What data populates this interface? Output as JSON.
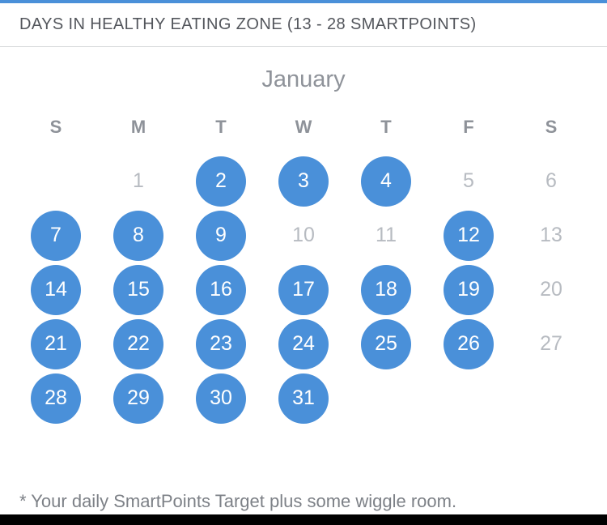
{
  "header": {
    "title": "DAYS IN HEALTHY EATING ZONE  (13 - 28 SMARTPOINTS)"
  },
  "calendar": {
    "month": "January",
    "weekday_headers": [
      "S",
      "M",
      "T",
      "W",
      "T",
      "F",
      "S"
    ],
    "start_offset": 1,
    "days": [
      {
        "day": 1,
        "in_zone": false
      },
      {
        "day": 2,
        "in_zone": true
      },
      {
        "day": 3,
        "in_zone": true
      },
      {
        "day": 4,
        "in_zone": true
      },
      {
        "day": 5,
        "in_zone": false
      },
      {
        "day": 6,
        "in_zone": false
      },
      {
        "day": 7,
        "in_zone": true
      },
      {
        "day": 8,
        "in_zone": true
      },
      {
        "day": 9,
        "in_zone": true
      },
      {
        "day": 10,
        "in_zone": false
      },
      {
        "day": 11,
        "in_zone": false
      },
      {
        "day": 12,
        "in_zone": true
      },
      {
        "day": 13,
        "in_zone": false
      },
      {
        "day": 14,
        "in_zone": true
      },
      {
        "day": 15,
        "in_zone": true
      },
      {
        "day": 16,
        "in_zone": true
      },
      {
        "day": 17,
        "in_zone": true
      },
      {
        "day": 18,
        "in_zone": true
      },
      {
        "day": 19,
        "in_zone": true
      },
      {
        "day": 20,
        "in_zone": false
      },
      {
        "day": 21,
        "in_zone": true
      },
      {
        "day": 22,
        "in_zone": true
      },
      {
        "day": 23,
        "in_zone": true
      },
      {
        "day": 24,
        "in_zone": true
      },
      {
        "day": 25,
        "in_zone": true
      },
      {
        "day": 26,
        "in_zone": true
      },
      {
        "day": 27,
        "in_zone": false
      },
      {
        "day": 28,
        "in_zone": true
      },
      {
        "day": 29,
        "in_zone": true
      },
      {
        "day": 30,
        "in_zone": true
      },
      {
        "day": 31,
        "in_zone": true
      }
    ]
  },
  "footer": {
    "note": "* Your daily SmartPoints Target plus some wiggle room."
  },
  "colors": {
    "accent_blue": "#4a90d9",
    "inactive_gray": "#b7bbc1",
    "header_text": "#53565c"
  }
}
